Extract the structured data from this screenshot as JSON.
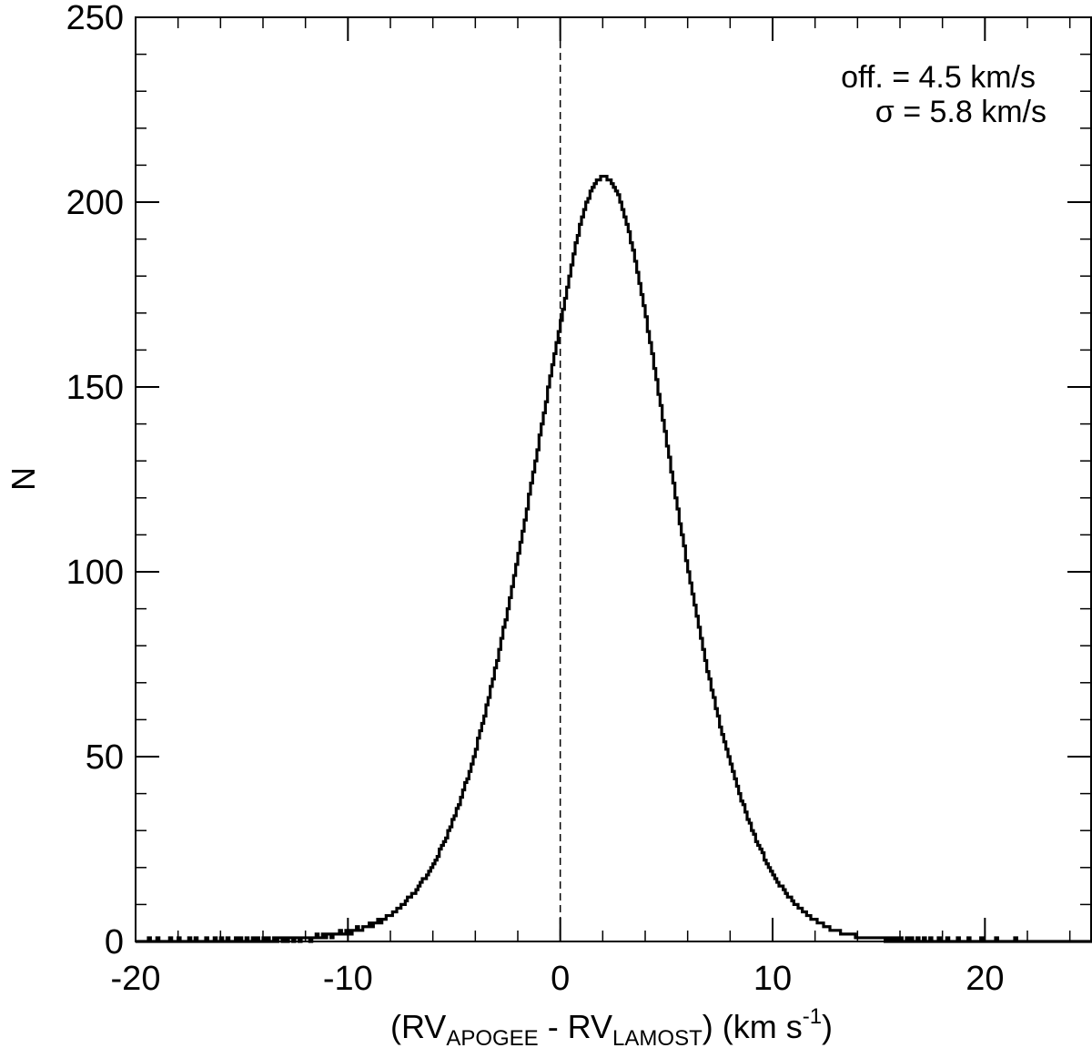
{
  "chart_data": {
    "type": "bar",
    "subtype": "histogram",
    "xlabel": {
      "open": "(RV",
      "sub1": "APOGEE",
      "mid": " - RV",
      "sub2": "LAMOST",
      "close": ") (km s",
      "sup": "-1",
      "end": ")"
    },
    "ylabel": "N",
    "xlim": [
      -20,
      25
    ],
    "ylim": [
      0,
      250
    ],
    "x_ticks": [
      -20,
      -10,
      0,
      10,
      20
    ],
    "y_ticks": [
      0,
      50,
      100,
      150,
      200,
      250
    ],
    "x_minor_step": 2,
    "y_minor_step": 10,
    "reference_line": {
      "x": 0,
      "style": "dashed"
    },
    "annotations": [
      "off. = 4.5 km/s",
      "σ = 5.8 km/s"
    ],
    "legend": "none",
    "grid": false,
    "fit": {
      "offset": 4.5,
      "sigma": 5.8,
      "peak": 202
    },
    "bins": {
      "start": -20,
      "width": 0.1,
      "counts": [
        0,
        0,
        0,
        0,
        0,
        0,
        1,
        0,
        0,
        0,
        1,
        0,
        0,
        0,
        0,
        0,
        1,
        0,
        0,
        0,
        1,
        0,
        0,
        0,
        0,
        1,
        0,
        0,
        1,
        0,
        0,
        0,
        0,
        1,
        0,
        0,
        0,
        1,
        0,
        0,
        1,
        0,
        0,
        1,
        0,
        0,
        0,
        1,
        0,
        1,
        0,
        0,
        1,
        0,
        0,
        1,
        0,
        1,
        0,
        0,
        1,
        0,
        1,
        0,
        0,
        1,
        0,
        1,
        1,
        0,
        1,
        0,
        1,
        1,
        0,
        1,
        1,
        0,
        1,
        1,
        1,
        1,
        0,
        1,
        1,
        2,
        1,
        1,
        2,
        1,
        2,
        2,
        1,
        2,
        2,
        2,
        3,
        2,
        2,
        3,
        3,
        2,
        3,
        3,
        4,
        3,
        3,
        4,
        4,
        4,
        5,
        4,
        5,
        5,
        6,
        5,
        6,
        6,
        7,
        7,
        7,
        8,
        8,
        9,
        9,
        10,
        10,
        11,
        12,
        12,
        13,
        13,
        14,
        15,
        16,
        17,
        17,
        18,
        19,
        20,
        21,
        22,
        23,
        25,
        26,
        27,
        28,
        30,
        31,
        33,
        34,
        36,
        37,
        39,
        41,
        43,
        44,
        46,
        48,
        50,
        52,
        55,
        57,
        59,
        61,
        64,
        66,
        69,
        71,
        74,
        76,
        79,
        82,
        85,
        87,
        90,
        93,
        96,
        99,
        102,
        105,
        108,
        111,
        114,
        117,
        121,
        124,
        127,
        130,
        133,
        137,
        140,
        143,
        146,
        150,
        153,
        156,
        159,
        162,
        165,
        168,
        171,
        174,
        177,
        180,
        183,
        186,
        189,
        191,
        194,
        196,
        198,
        200,
        201,
        203,
        204,
        205,
        206,
        206,
        207,
        207,
        207,
        206,
        206,
        205,
        204,
        203,
        202,
        200,
        198,
        196,
        194,
        192,
        189,
        187,
        184,
        181,
        178,
        175,
        172,
        169,
        165,
        162,
        159,
        155,
        152,
        148,
        145,
        141,
        138,
        134,
        131,
        127,
        124,
        120,
        117,
        113,
        110,
        107,
        103,
        100,
        97,
        94,
        91,
        88,
        85,
        82,
        79,
        76,
        73,
        71,
        68,
        66,
        63,
        61,
        58,
        56,
        54,
        52,
        50,
        48,
        46,
        44,
        42,
        40,
        38,
        37,
        35,
        33,
        32,
        30,
        29,
        27,
        26,
        25,
        24,
        22,
        21,
        20,
        19,
        18,
        17,
        16,
        15,
        15,
        14,
        13,
        12,
        12,
        11,
        10,
        10,
        9,
        9,
        8,
        8,
        7,
        7,
        6,
        6,
        6,
        5,
        5,
        5,
        4,
        4,
        4,
        3,
        3,
        3,
        3,
        3,
        2,
        2,
        2,
        2,
        2,
        2,
        2,
        1,
        1,
        1,
        1,
        1,
        1,
        1,
        1,
        1,
        1,
        1,
        1,
        1,
        1,
        0,
        1,
        0,
        1,
        0,
        1,
        0,
        1,
        0,
        0,
        1,
        0,
        1,
        0,
        0,
        1,
        0,
        0,
        1,
        0,
        0,
        1,
        0,
        0,
        0,
        1,
        0,
        0,
        0,
        1,
        0,
        0,
        0,
        0,
        1,
        0,
        0,
        0,
        0,
        1,
        0,
        0,
        0,
        0,
        0,
        1,
        0,
        0,
        0,
        0,
        0,
        0,
        1,
        0,
        0,
        0,
        0,
        0,
        0,
        0,
        0,
        1,
        0,
        0,
        0,
        0,
        0,
        0,
        0,
        0,
        0,
        0,
        0,
        0,
        0,
        0,
        0,
        0,
        0,
        0,
        0,
        0,
        0,
        0,
        0,
        0,
        0,
        0,
        0,
        0,
        0,
        0,
        0,
        0,
        0,
        0,
        0,
        0,
        0,
        0,
        0,
        0,
        0,
        0,
        0,
        0,
        0,
        0,
        0,
        0,
        0,
        0,
        0,
        0,
        0,
        0,
        0
      ]
    }
  }
}
